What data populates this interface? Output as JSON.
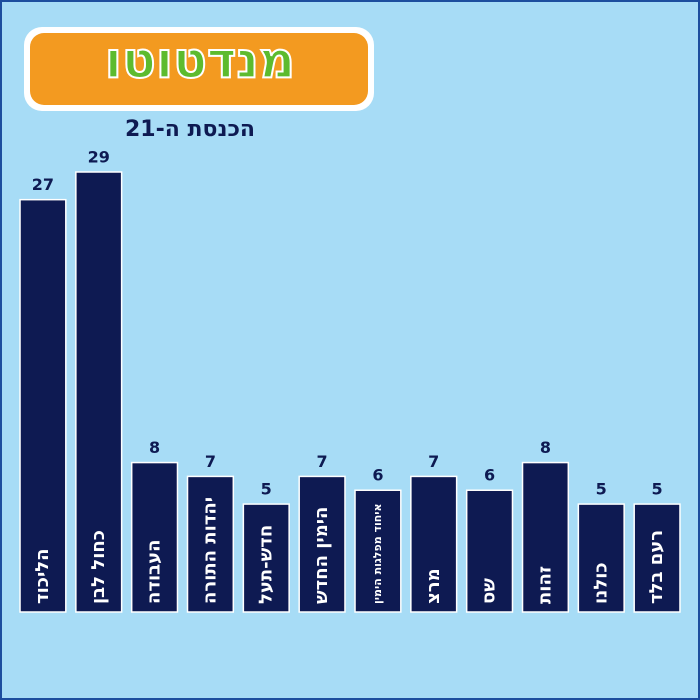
{
  "chart_data": {
    "type": "bar",
    "logo": "מנדטוטו",
    "title": "הכנסת ה-21",
    "categories": [
      "הליכוד",
      "כחול לבן",
      "העבודה",
      "יהדות התורה",
      "חדש-תעל",
      "הימין החדש",
      "איחוד מפלגות הימין",
      "מרצ",
      "שס",
      "זהות",
      "כולנו",
      "רעם בלד"
    ],
    "values": [
      27,
      29,
      8,
      7,
      5,
      7,
      6,
      7,
      6,
      8,
      5,
      5
    ],
    "color": "#0e1a52",
    "ylim": [
      -2.8,
      29
    ]
  }
}
